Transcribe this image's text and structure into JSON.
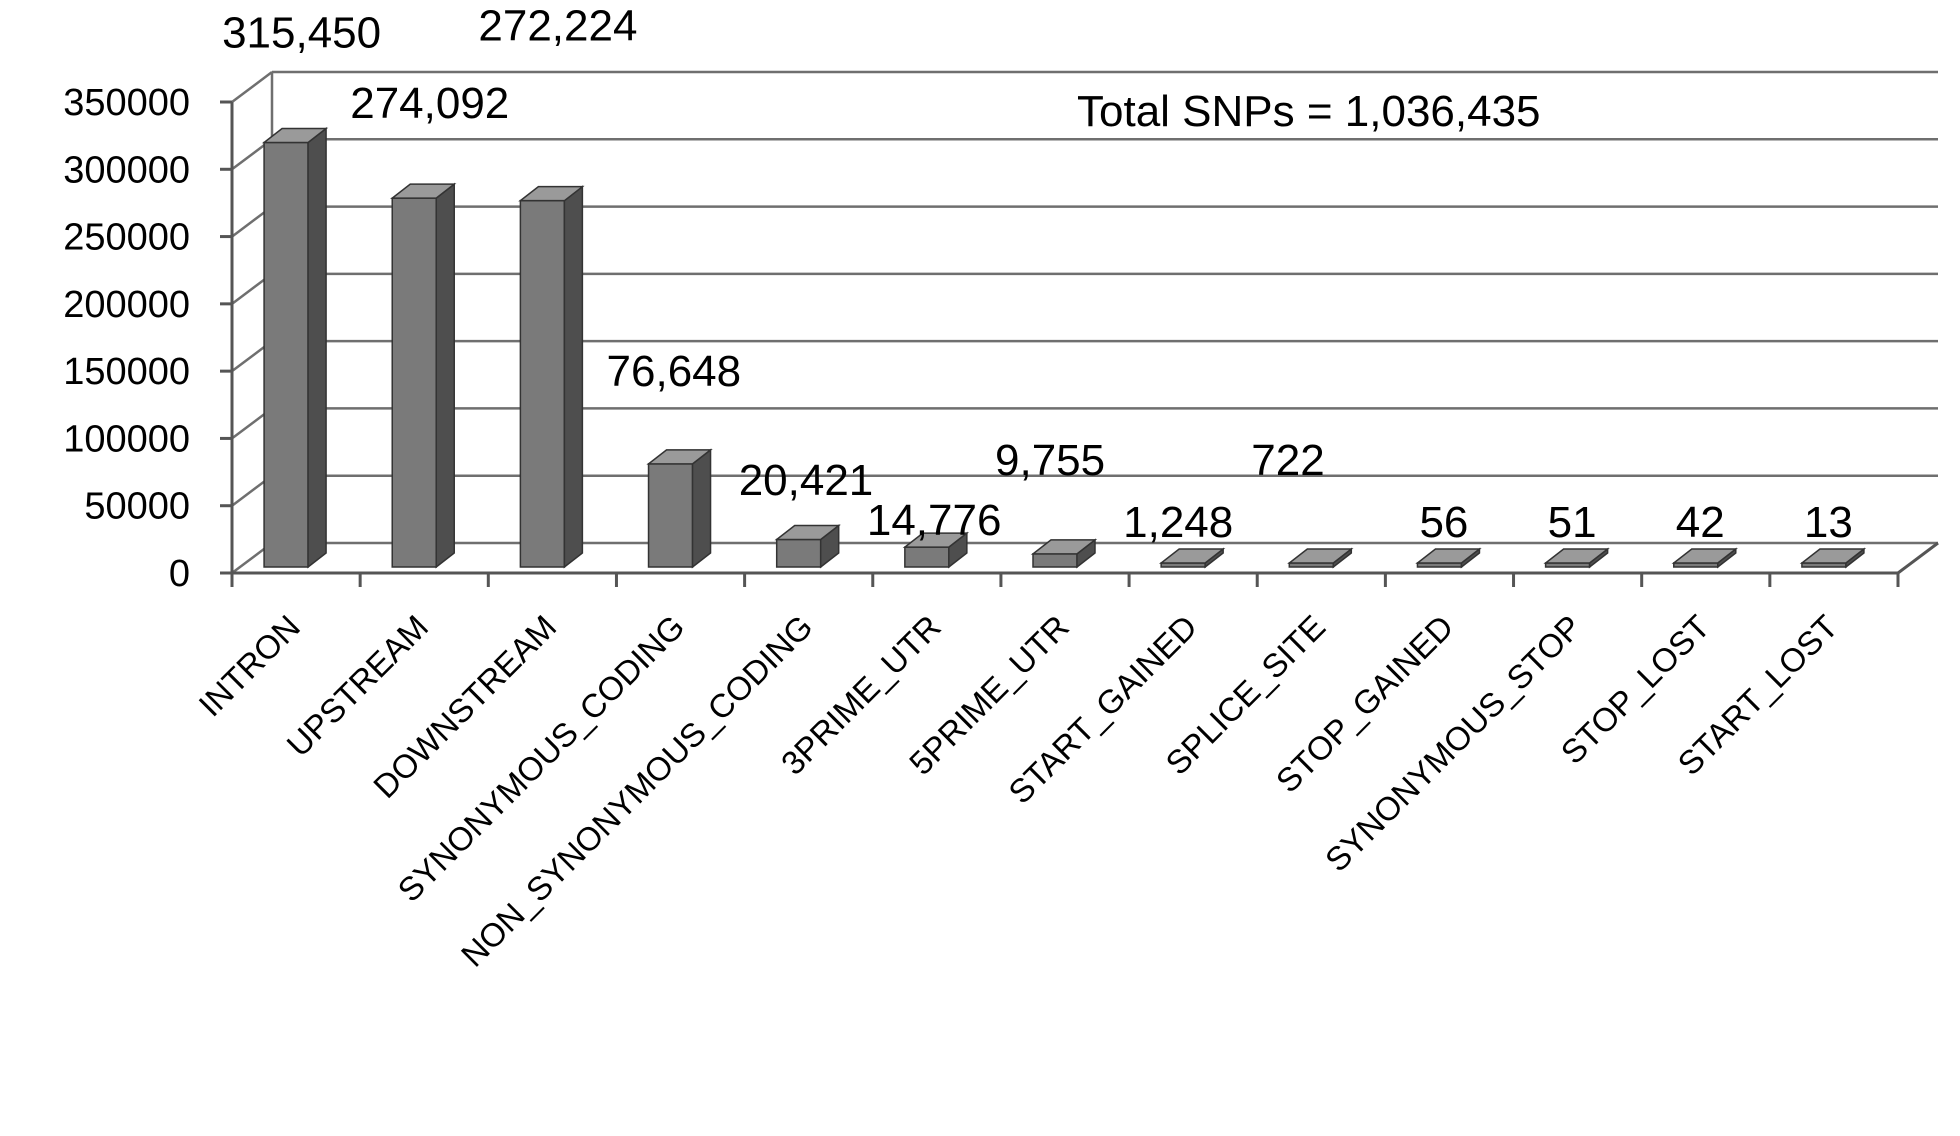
{
  "chart_data": {
    "type": "bar",
    "title": "",
    "xlabel": "",
    "ylabel": "",
    "ylim": [
      0,
      350000
    ],
    "yticks": [
      0,
      50000,
      100000,
      150000,
      200000,
      250000,
      300000,
      350000
    ],
    "grid": true,
    "three_d": true,
    "bar_color": "#7a7a7a",
    "categories": [
      "INTRON",
      "UPSTREAM",
      "DOWNSTREAM",
      "SYNONYMOUS_CODING",
      "NON_SYNONYMOUS_CODING",
      "3PRIME_UTR",
      "5PRIME_UTR",
      "START_GAINED",
      "SPLICE_SITE",
      "STOP_GAINED",
      "SYNONYMOUS_STOP",
      "STOP_LOST",
      "START_LOST"
    ],
    "values": [
      315450,
      274092,
      272224,
      76648,
      20421,
      14776,
      9755,
      1248,
      722,
      56,
      51,
      42,
      13
    ],
    "data_labels": [
      "315,450",
      "274,092",
      "272,224",
      "76,648",
      "20,421",
      "14,776",
      "9,755",
      "1,248",
      "722",
      "56",
      "51",
      "42",
      "13"
    ],
    "annotation": "Total SNPs = 1,036,435"
  }
}
